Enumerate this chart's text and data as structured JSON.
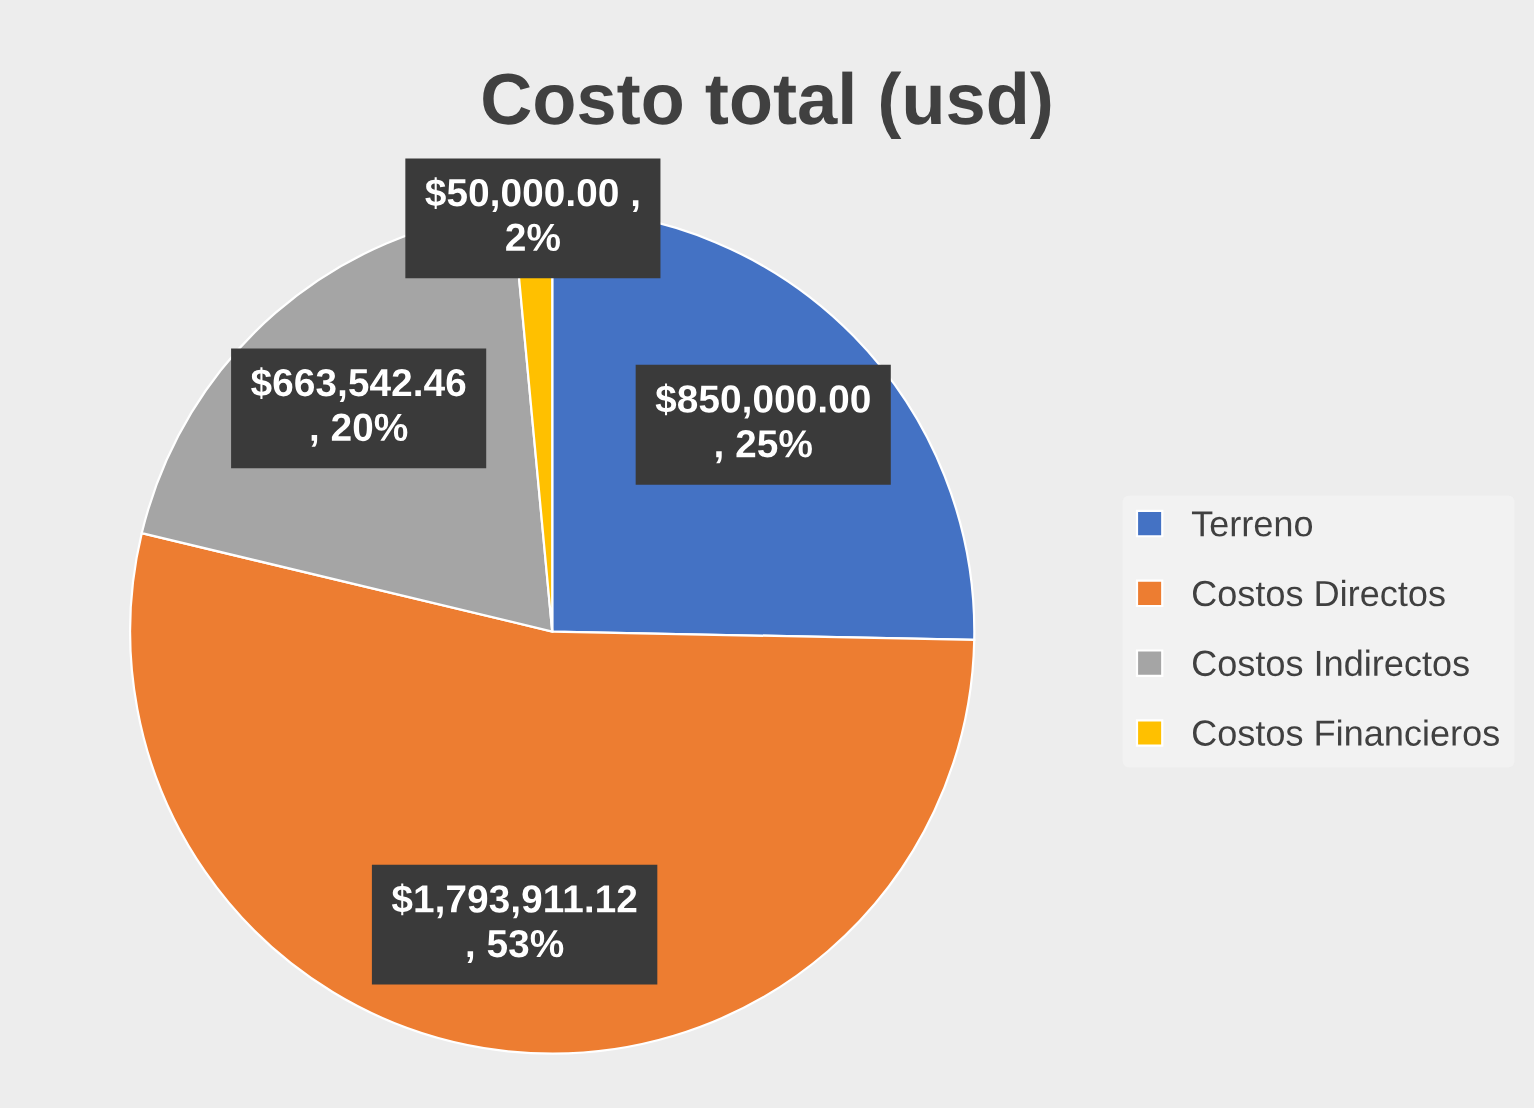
{
  "chart_data": {
    "type": "pie",
    "title": "Costo total (usd)",
    "categories": [
      "Terreno",
      "Costos Directos",
      "Costos Indirectos",
      "Costos Financieros"
    ],
    "values": [
      850000.0,
      1793911.12,
      663542.46,
      50000.0
    ],
    "colors": [
      "#4472c4",
      "#ed7d31",
      "#a5a5a5",
      "#ffc000"
    ],
    "value_labels": [
      "$850,000.00\n, 25%",
      "$1,793,911.12\n, 53%",
      "$663,542.46\n, 20%",
      "$50,000.00 ,\n2%"
    ],
    "legend": "right"
  }
}
